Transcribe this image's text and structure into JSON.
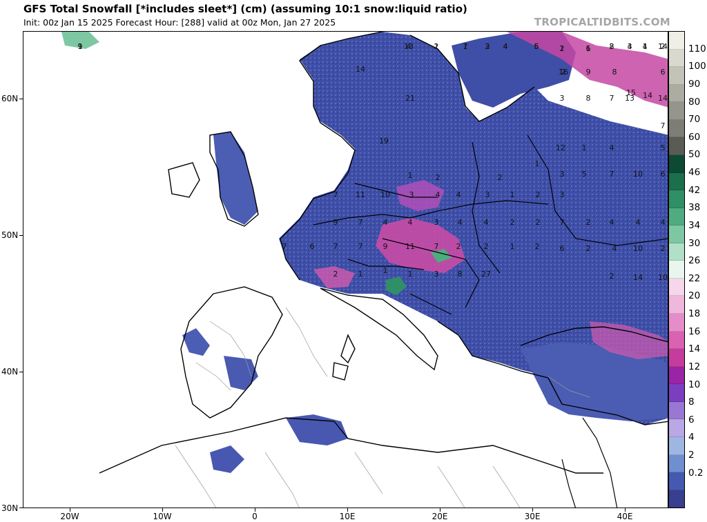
{
  "header": {
    "title": "GFS Total Snowfall [*includes sleet*] (cm) (assuming 10:1 snow:liquid ratio)",
    "subtitle": "Init: 00z Jan 15 2025   Forecast Hour: [288]   valid at 00z Mon, Jan 27 2025",
    "brand": "TROPICALTIDBITS.COM"
  },
  "axes": {
    "lat_labels": [
      "60N",
      "50N",
      "40N",
      "30N"
    ],
    "lon_labels": [
      "20W",
      "10W",
      "0",
      "10E",
      "20E",
      "30E",
      "40E"
    ]
  },
  "colorbar": {
    "labels": [
      "110",
      "100",
      "90",
      "80",
      "70",
      "60",
      "50",
      "46",
      "42",
      "38",
      "34",
      "30",
      "26",
      "22",
      "20",
      "18",
      "16",
      "14",
      "12",
      "10",
      "8",
      "6",
      "4",
      "2",
      "0.2"
    ],
    "colors": [
      "#efefe6",
      "#d9d9cf",
      "#c3c3b8",
      "#acaca2",
      "#95958b",
      "#7d7d75",
      "#5b5b55",
      "#0d4a33",
      "#1c6e4c",
      "#2f8f66",
      "#4fac80",
      "#7dc8a2",
      "#b0e0c7",
      "#e9f6ef",
      "#f5d6ea",
      "#efb7db",
      "#e58dc8",
      "#d962b3",
      "#c53c9c",
      "#9924a6",
      "#7a3fbf",
      "#9878d3",
      "#b9a7e6",
      "#9eb7e1",
      "#6f8fcf",
      "#4659b1",
      "#383f8f"
    ]
  },
  "map": {
    "values": [
      "1",
      "4",
      "2",
      "1",
      "2",
      "4",
      "6",
      "1",
      "1",
      "8",
      "4",
      "4",
      "14",
      "16",
      "9",
      "8",
      "15",
      "6",
      "14",
      "3",
      "8",
      "7",
      "13",
      "14",
      "14",
      "21",
      "19",
      "1",
      "2",
      "2",
      "1",
      "3",
      "5",
      "7",
      "10",
      "6",
      "12",
      "1",
      "4",
      "5",
      "7",
      "7",
      "11",
      "10",
      "3",
      "4",
      "4",
      "3",
      "1",
      "2",
      "3",
      "9",
      "7",
      "4",
      "4",
      "3",
      "4",
      "4",
      "2",
      "2",
      "7",
      "2",
      "4",
      "4",
      "4",
      "7",
      "6",
      "7",
      "7",
      "9",
      "11",
      "7",
      "2",
      "2",
      "1",
      "2",
      "2",
      "1",
      "1",
      "1",
      "3",
      "8",
      "27",
      "6",
      "2",
      "4",
      "10",
      "2",
      "2",
      "14",
      "10",
      "9",
      "13",
      "1",
      "7",
      "3",
      "4",
      "5",
      "2",
      "6",
      "2",
      "3",
      "1",
      "2",
      "2"
    ]
  }
}
